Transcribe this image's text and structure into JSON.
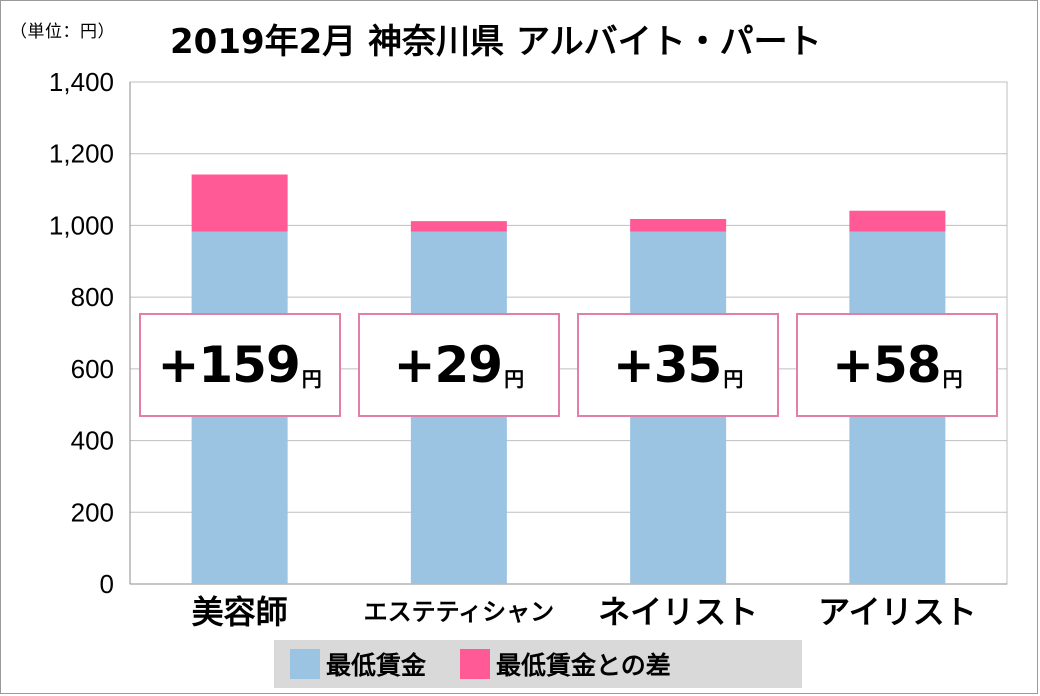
{
  "unit_label": "（単位：円）",
  "title": "2019年2月 神奈川県 アルバイト・パート",
  "colors": {
    "base": "#9bc3e2",
    "diff": "#ff5996",
    "callout_border": "#e07fa7",
    "grid": "#bfbfbf",
    "legend_bg": "#d9d9d9"
  },
  "legend": {
    "base_label": "最低賃金",
    "diff_label": "最低賃金との差"
  },
  "callouts": [
    {
      "amount": "+159",
      "unit": "円"
    },
    {
      "amount": "+29",
      "unit": "円"
    },
    {
      "amount": "+35",
      "unit": "円"
    },
    {
      "amount": "+58",
      "unit": "円"
    }
  ],
  "chart_data": {
    "type": "bar",
    "stacked": true,
    "categories": [
      "美容師",
      "エステティシャン",
      "ネイリスト",
      "アイリスト"
    ],
    "series": [
      {
        "name": "最低賃金",
        "values": [
          983,
          983,
          983,
          983
        ]
      },
      {
        "name": "最低賃金との差",
        "values": [
          159,
          29,
          35,
          58
        ]
      }
    ],
    "title": "2019年2月 神奈川県 アルバイト・パート",
    "ylim": [
      0,
      1400
    ],
    "yticks": [
      "0",
      "200",
      "400",
      "600",
      "800",
      "1,000",
      "1,200",
      "1,400"
    ],
    "grid": true,
    "legend_position": "bottom"
  }
}
